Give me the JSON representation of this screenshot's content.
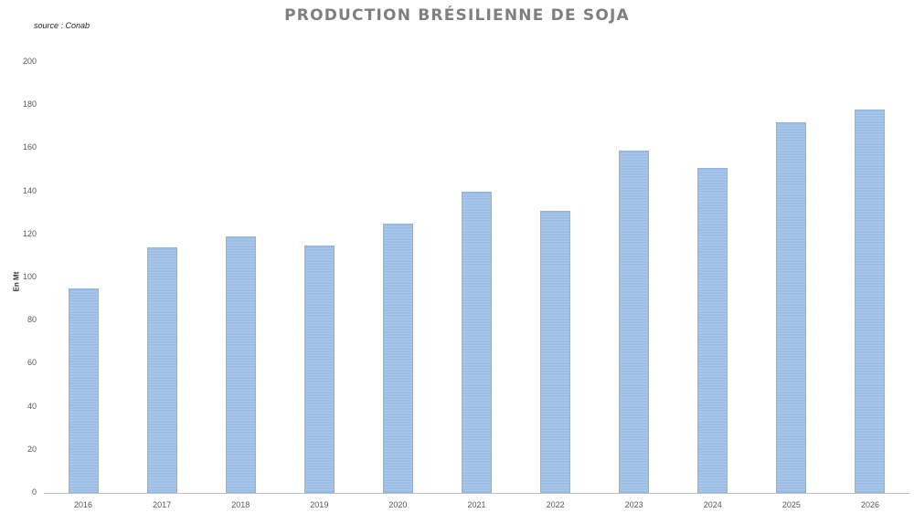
{
  "chart_data": {
    "type": "bar",
    "title": "PRODUCTION BRÉSILIENNE DE SOJA",
    "subtitle": "source : Conab",
    "xlabel": "",
    "ylabel": "En Mt",
    "categories": [
      "2016",
      "2017",
      "2018",
      "2019",
      "2020",
      "2021",
      "2022",
      "2023",
      "2024",
      "2025",
      "2026"
    ],
    "values": [
      95,
      114,
      119,
      115,
      125,
      140,
      131,
      159,
      151,
      172,
      178
    ],
    "ylim": [
      0,
      200
    ],
    "yticks": [
      0,
      20,
      40,
      60,
      80,
      100,
      120,
      140,
      160,
      180,
      200
    ],
    "grid": false,
    "legend": "none",
    "bar_color": "#9dbfe6"
  }
}
